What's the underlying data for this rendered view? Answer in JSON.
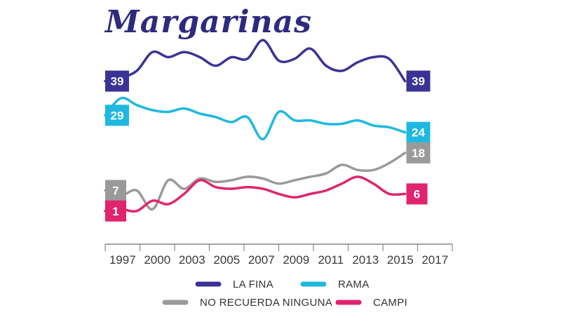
{
  "chart_data": {
    "type": "line",
    "title": "Margarinas",
    "xlabel": "",
    "ylabel": "",
    "ylim": [
      -5,
      50
    ],
    "grid": false,
    "legend_placement": "bottom",
    "categories": [
      "1997",
      "2000",
      "2003",
      "2005",
      "2007",
      "2009",
      "2011",
      "2013",
      "2015",
      "2017"
    ],
    "x": [
      1997,
      1998,
      1999,
      2000,
      2001,
      2002,
      2003,
      2004,
      2005,
      2006,
      2007,
      2008,
      2009,
      2010,
      2011,
      2012,
      2013,
      2014,
      2015,
      2016,
      2017,
      2018,
      2019
    ],
    "series": [
      {
        "name": "LA FINA",
        "color": "#3a3396",
        "values": [
          39,
          40,
          42,
          47.5,
          46,
          47.5,
          46,
          43.5,
          46,
          45.5,
          51,
          45,
          45.5,
          48.5,
          43.5,
          42,
          44.5,
          46,
          45.5,
          39,
          null,
          null,
          null
        ],
        "start_label": "39",
        "end_label": "39"
      },
      {
        "name": "RAMA",
        "color": "#1fb8e1",
        "values": [
          29,
          34,
          32,
          30.5,
          30,
          31,
          29.5,
          28.5,
          27,
          28.5,
          22,
          30,
          27.5,
          27.5,
          26.5,
          26.5,
          27.5,
          26,
          25.5,
          24,
          null,
          null,
          null
        ],
        "start_label": "29",
        "end_label": "24"
      },
      {
        "name": "NO RECUERDA NINGUNA",
        "color": "#9a9a9a",
        "values": [
          7,
          5.5,
          7,
          1.5,
          10,
          7.5,
          10.5,
          9.5,
          10,
          11,
          10.5,
          9,
          10,
          11,
          12,
          14.5,
          13,
          13,
          15,
          18,
          null,
          null,
          null
        ],
        "start_label": "7",
        "end_label": "18"
      },
      {
        "name": "CAMPI",
        "color": "#e0246e",
        "values": [
          1,
          1.5,
          1,
          4,
          3,
          6,
          10,
          8,
          7.5,
          8,
          7.5,
          6,
          5,
          6,
          7,
          9,
          11,
          9,
          6,
          6,
          null,
          null,
          null
        ],
        "start_label": "1",
        "end_label": "6"
      }
    ]
  }
}
